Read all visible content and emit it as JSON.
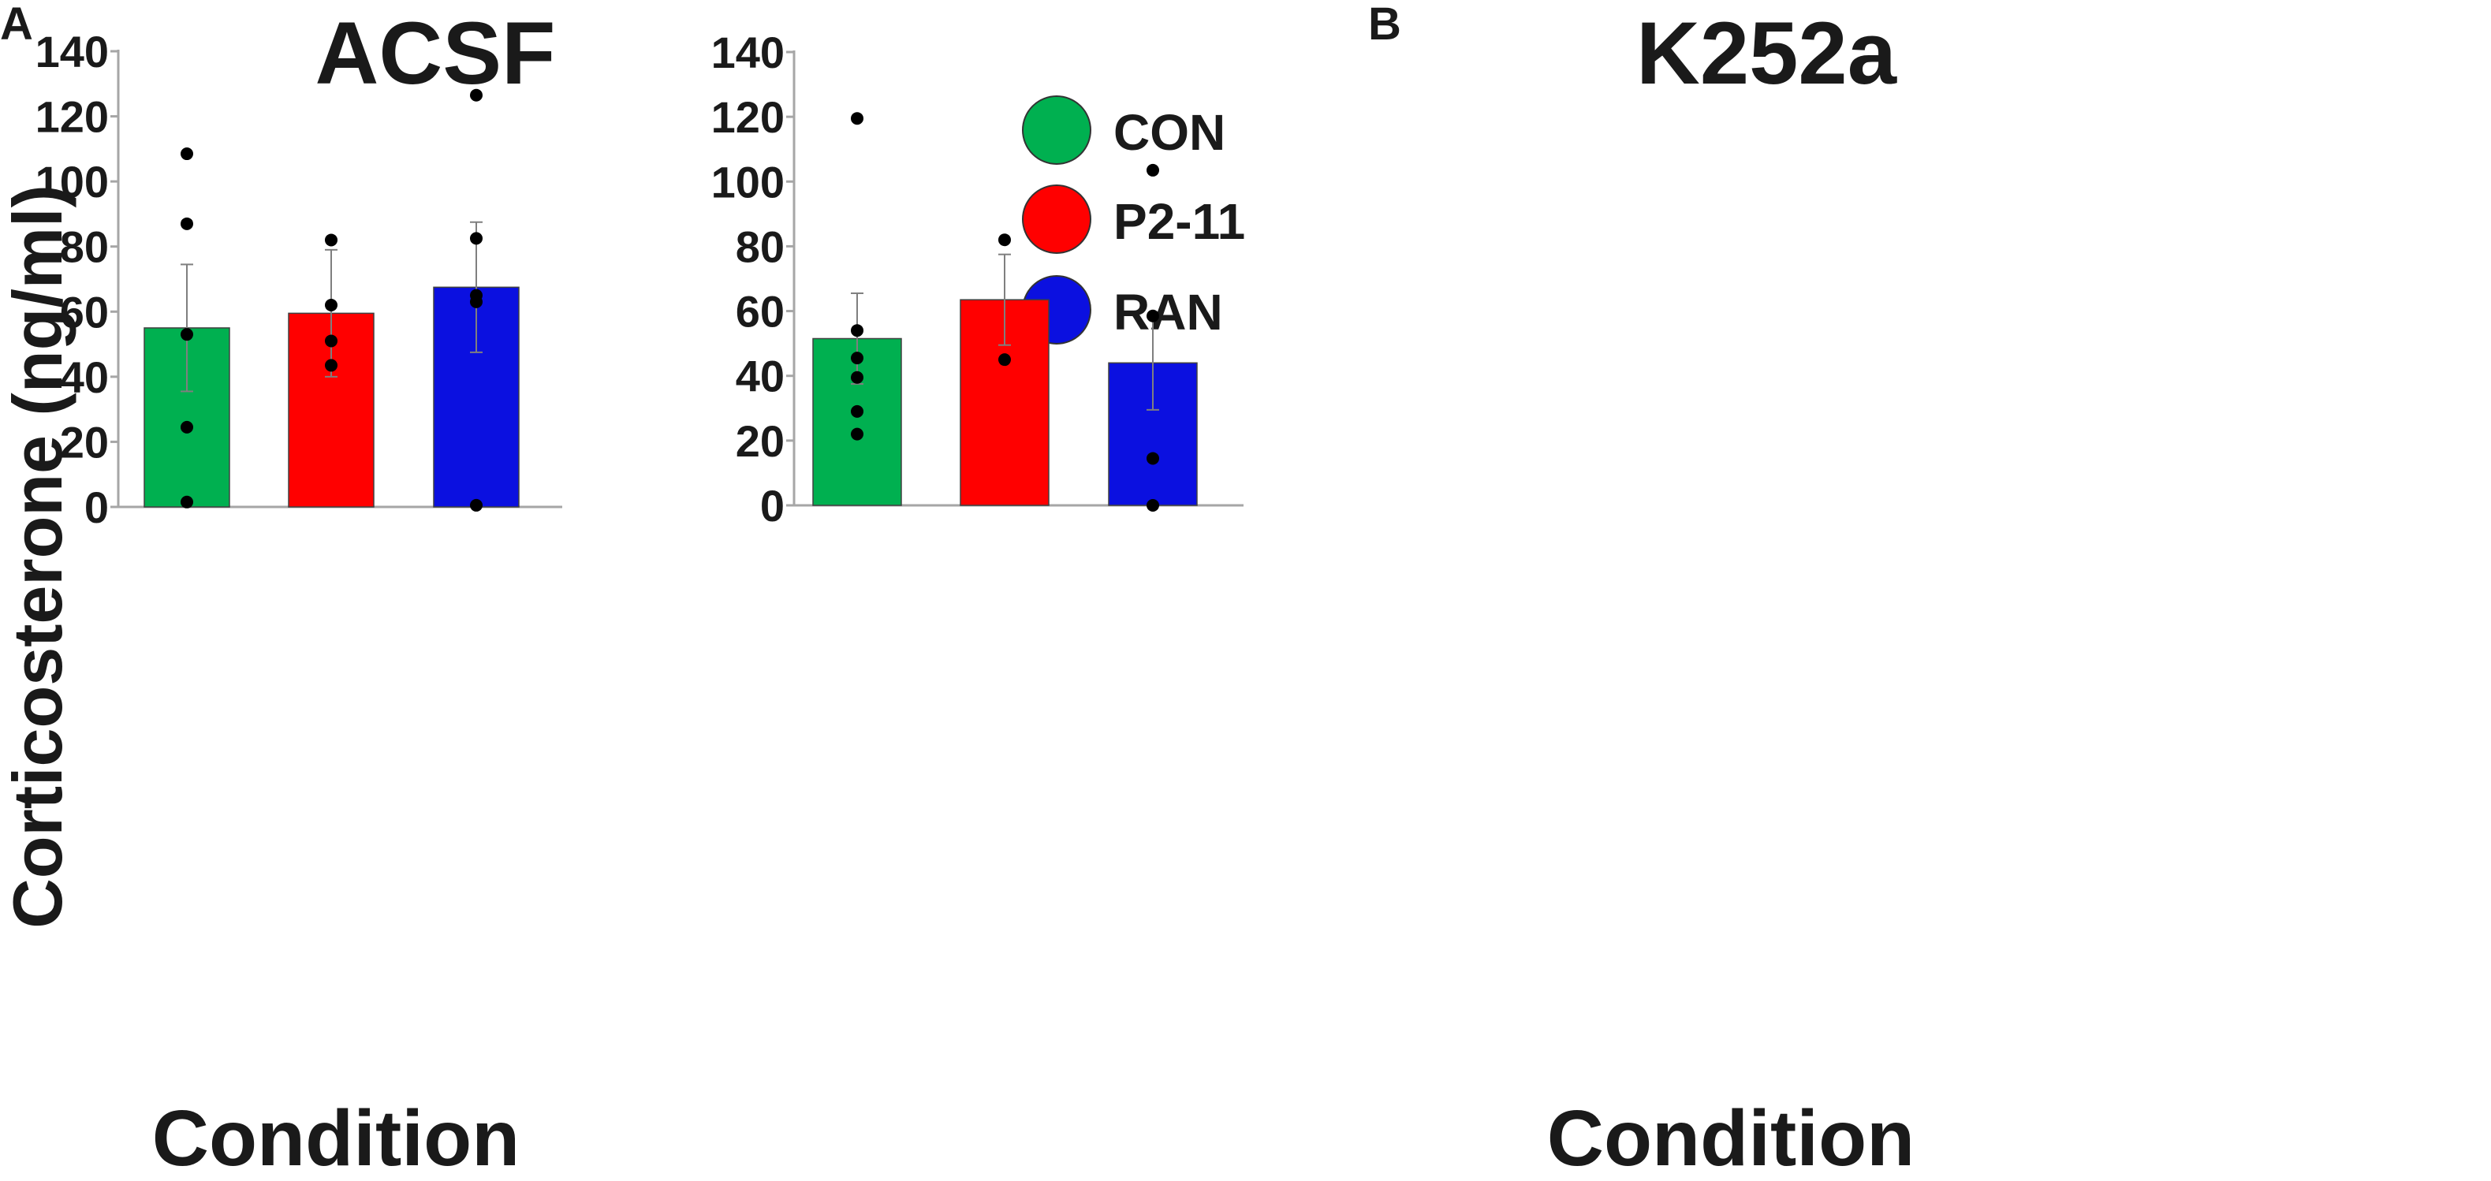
{
  "chart_data": [
    {
      "panel_letter": "A",
      "title": "ACSF",
      "type": "bar",
      "ylabel": "Corticosterone (ng/ml)",
      "xlabel": "Condition",
      "ylim": [
        0,
        140
      ],
      "yticks": [
        0,
        20,
        40,
        60,
        80,
        100,
        120,
        140
      ],
      "categories": [
        "CON",
        "P2-11",
        "RAN"
      ],
      "values": [
        55,
        59.5,
        67.5
      ],
      "sem": [
        19.5,
        19.5,
        20
      ],
      "points": [
        [
          108.5,
          87,
          53,
          24.5,
          1.5
        ],
        [
          82,
          62,
          51,
          43.5
        ],
        [
          126.5,
          82.5,
          65,
          63,
          0.5
        ]
      ],
      "legend": [
        {
          "label": "CON",
          "color": "#00b050"
        },
        {
          "label": "P2-11",
          "color": "#ff0000"
        },
        {
          "label": "RAN",
          "color": "#0b10e0"
        }
      ],
      "legend_position": "top-right"
    },
    {
      "panel_letter": "B",
      "title": "K252a",
      "type": "bar",
      "ylabel": "",
      "xlabel": "Condition",
      "ylim": [
        0,
        140
      ],
      "yticks": [
        0,
        20,
        40,
        60,
        80,
        100,
        120,
        140
      ],
      "categories": [
        "CON",
        "P2-11",
        "RAN"
      ],
      "values": [
        51.5,
        63.5,
        44
      ],
      "sem": [
        14,
        14,
        14.5
      ],
      "points": [
        [
          119.5,
          54,
          45.5,
          39.5,
          29,
          22
        ],
        [
          82,
          45
        ],
        [
          103.5,
          58.5,
          14.5,
          0
        ]
      ]
    }
  ],
  "colors": {
    "con": "#00b050",
    "p2_11": "#ff0000",
    "ran": "#0b10e0",
    "axis": "#a6a6a6",
    "error_bar": "#7f7f7f",
    "point": "#000000",
    "bar_border": "#404040"
  }
}
